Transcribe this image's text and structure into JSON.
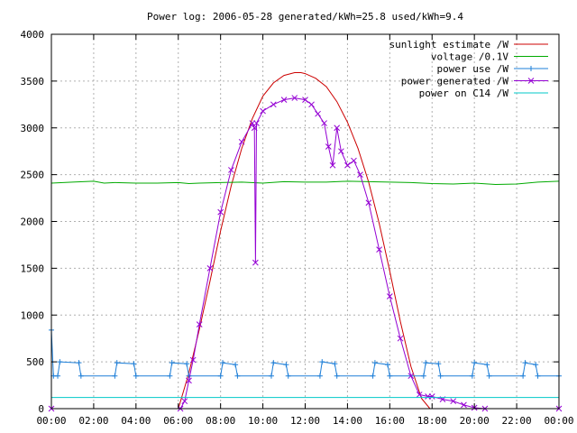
{
  "chart_data": {
    "type": "line",
    "title": "Power log: 2006-05-28 generated/kWh=25.8 used/kWh=9.4",
    "xlabel": "",
    "ylabel": "",
    "xlim": [
      0,
      24
    ],
    "ylim": [
      0,
      4000
    ],
    "x_ticks": [
      "00:00",
      "02:00",
      "04:00",
      "06:00",
      "08:00",
      "10:00",
      "12:00",
      "14:00",
      "16:00",
      "18:00",
      "20:00",
      "22:00",
      "00:00"
    ],
    "y_ticks": [
      "0",
      "500",
      "1000",
      "1500",
      "2000",
      "2500",
      "3000",
      "3500",
      "4000"
    ],
    "grid": true,
    "legend_position": "top-right",
    "series": [
      {
        "name": "sunlight estimate /W",
        "color": "#cc0000",
        "marker": "none",
        "x": [
          6.0,
          6.5,
          7.0,
          7.5,
          8.0,
          8.5,
          9.0,
          9.5,
          10.0,
          10.5,
          11.0,
          11.5,
          11.8,
          12.0,
          12.5,
          13.0,
          13.5,
          14.0,
          14.5,
          15.0,
          15.5,
          16.0,
          16.5,
          17.0,
          17.5,
          17.9
        ],
        "y": [
          0,
          380,
          850,
          1360,
          1900,
          2380,
          2780,
          3100,
          3340,
          3480,
          3560,
          3590,
          3590,
          3580,
          3530,
          3440,
          3280,
          3060,
          2780,
          2420,
          1980,
          1470,
          930,
          450,
          110,
          0
        ]
      },
      {
        "name": "voltage /0.1V",
        "color": "#00aa00",
        "marker": "none",
        "x": [
          0.0,
          1.0,
          2.0,
          2.5,
          3.0,
          4.0,
          5.0,
          6.0,
          6.5,
          7.0,
          8.0,
          9.0,
          10.0,
          11.0,
          12.0,
          13.0,
          14.0,
          15.0,
          16.0,
          17.0,
          18.0,
          19.0,
          20.0,
          21.0,
          22.0,
          23.0,
          24.0
        ],
        "y": [
          2410,
          2420,
          2430,
          2410,
          2415,
          2410,
          2410,
          2415,
          2405,
          2410,
          2415,
          2420,
          2410,
          2425,
          2420,
          2420,
          2430,
          2425,
          2420,
          2415,
          2405,
          2400,
          2410,
          2395,
          2400,
          2420,
          2430
        ]
      },
      {
        "name": "power use /W",
        "color": "#1e7fd8",
        "marker": "plus",
        "x": [
          0.0,
          0.1,
          0.3,
          0.4,
          1.3,
          1.4,
          3.0,
          3.1,
          3.9,
          4.0,
          5.6,
          5.7,
          6.4,
          6.5,
          8.0,
          8.1,
          8.7,
          8.8,
          10.4,
          10.5,
          11.1,
          11.2,
          12.7,
          12.8,
          13.4,
          13.5,
          15.2,
          15.3,
          15.9,
          16.0,
          17.6,
          17.7,
          18.3,
          18.4,
          19.9,
          20.0,
          20.6,
          20.7,
          22.3,
          22.4,
          22.9,
          23.0,
          24.0
        ],
        "y": [
          840,
          350,
          350,
          500,
          490,
          350,
          350,
          490,
          480,
          350,
          350,
          490,
          480,
          350,
          350,
          490,
          470,
          350,
          350,
          490,
          470,
          350,
          350,
          500,
          480,
          350,
          350,
          490,
          470,
          350,
          350,
          490,
          480,
          350,
          350,
          490,
          470,
          350,
          350,
          490,
          470,
          350,
          350
        ]
      },
      {
        "name": "power generated /W",
        "color": "#9400d3",
        "marker": "x",
        "x": [
          0.0,
          6.1,
          6.3,
          6.5,
          6.7,
          7.0,
          7.5,
          8.0,
          8.5,
          9.0,
          9.5,
          9.6,
          9.65,
          9.7,
          10.0,
          10.5,
          11.0,
          11.5,
          12.0,
          12.3,
          12.6,
          12.9,
          13.1,
          13.3,
          13.5,
          13.7,
          14.0,
          14.3,
          14.6,
          15.0,
          15.5,
          16.0,
          16.5,
          17.0,
          17.4,
          17.8,
          18.0,
          18.5,
          19.0,
          19.5,
          20.0,
          20.5,
          24.0
        ],
        "y": [
          0,
          0,
          80,
          300,
          520,
          900,
          1500,
          2100,
          2550,
          2850,
          3050,
          3000,
          1560,
          3050,
          3180,
          3250,
          3300,
          3320,
          3300,
          3250,
          3150,
          3050,
          2800,
          2600,
          3000,
          2750,
          2600,
          2650,
          2500,
          2200,
          1700,
          1200,
          750,
          350,
          150,
          130,
          130,
          100,
          80,
          40,
          10,
          0,
          0
        ]
      },
      {
        "name": "power on C14 /W",
        "color": "#00c8c8",
        "marker": "none",
        "x": [
          0,
          24
        ],
        "y": [
          120,
          120
        ]
      }
    ]
  }
}
